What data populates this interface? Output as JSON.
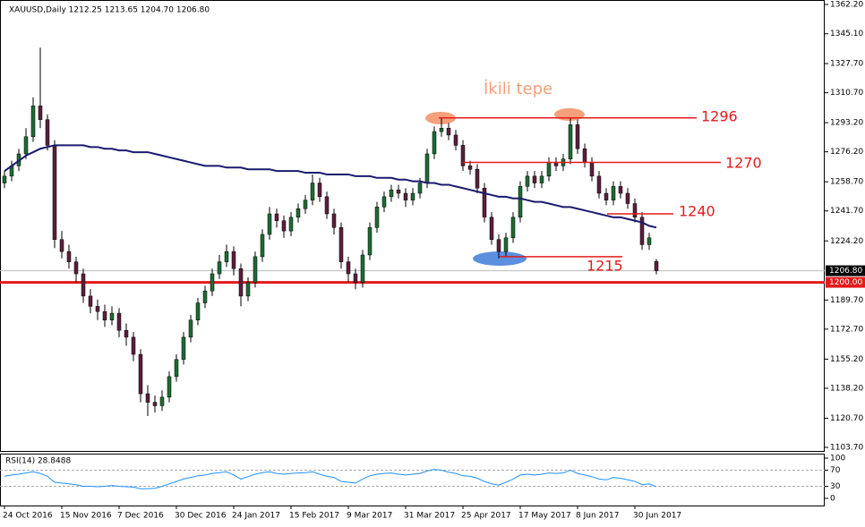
{
  "chart_data": {
    "type": "candlestick",
    "title": "XAUUSD,Daily  1212.25 1213.65 1204.70 1206.80",
    "up_color": "#1e6b34",
    "down_color": "#5a1f3c",
    "ylim": [
      1103.7,
      1362.2
    ],
    "yticks": [
      {
        "value": 1362.2,
        "label": "1362.20"
      },
      {
        "value": 1345.1,
        "label": "1345.10"
      },
      {
        "value": 1327.7,
        "label": "1327.70"
      },
      {
        "value": 1310.7,
        "label": "1310.70"
      },
      {
        "value": 1293.2,
        "label": "1293.20"
      },
      {
        "value": 1276.2,
        "label": "1276.20"
      },
      {
        "value": 1258.7,
        "label": "1258.70"
      },
      {
        "value": 1241.7,
        "label": "1241.70"
      },
      {
        "value": 1224.2,
        "label": "1224.20"
      },
      {
        "value": 1189.7,
        "label": "1189.70"
      },
      {
        "value": 1172.7,
        "label": "1172.70"
      },
      {
        "value": 1155.2,
        "label": "1155.20"
      },
      {
        "value": 1138.2,
        "label": "1138.20"
      },
      {
        "value": 1120.7,
        "label": "1120.70"
      },
      {
        "value": 1103.7,
        "label": "1103.70"
      }
    ],
    "xticks": [
      {
        "value": 0,
        "label": "24 Oct 2016"
      },
      {
        "value": 8,
        "label": "15 Nov 2016"
      },
      {
        "value": 16,
        "label": "7 Dec 2016"
      },
      {
        "value": 24,
        "label": "30 Dec 2016"
      },
      {
        "value": 32,
        "label": "24 Jan 2017"
      },
      {
        "value": 40,
        "label": "15 Feb 2017"
      },
      {
        "value": 48,
        "label": "9 Mar 2017"
      },
      {
        "value": 56,
        "label": "31 Mar 2017"
      },
      {
        "value": 64,
        "label": "25 Apr 2017"
      },
      {
        "value": 72,
        "label": "17 May 2017"
      },
      {
        "value": 80,
        "label": "8 Jun 2017"
      },
      {
        "value": 88,
        "label": "30 Jun 2017"
      }
    ],
    "candles": [
      [
        1258,
        1265,
        1255,
        1262
      ],
      [
        1262,
        1271,
        1259,
        1268
      ],
      [
        1268,
        1278,
        1265,
        1275
      ],
      [
        1275,
        1290,
        1272,
        1285
      ],
      [
        1285,
        1308,
        1282,
        1303
      ],
      [
        1303,
        1337,
        1290,
        1295
      ],
      [
        1295,
        1298,
        1277,
        1280
      ],
      [
        1280,
        1283,
        1220,
        1225
      ],
      [
        1225,
        1230,
        1214,
        1218
      ],
      [
        1218,
        1222,
        1208,
        1212
      ],
      [
        1212,
        1215,
        1200,
        1205
      ],
      [
        1205,
        1208,
        1188,
        1192
      ],
      [
        1192,
        1196,
        1182,
        1186
      ],
      [
        1186,
        1190,
        1178,
        1183
      ],
      [
        1183,
        1187,
        1174,
        1178
      ],
      [
        1178,
        1186,
        1175,
        1182
      ],
      [
        1182,
        1185,
        1168,
        1172
      ],
      [
        1172,
        1176,
        1163,
        1168
      ],
      [
        1168,
        1171,
        1154,
        1158
      ],
      [
        1158,
        1161,
        1130,
        1135
      ],
      [
        1135,
        1140,
        1122,
        1130
      ],
      [
        1130,
        1134,
        1124,
        1128
      ],
      [
        1128,
        1137,
        1125,
        1133
      ],
      [
        1133,
        1148,
        1130,
        1145
      ],
      [
        1145,
        1158,
        1142,
        1155
      ],
      [
        1155,
        1171,
        1152,
        1168
      ],
      [
        1168,
        1181,
        1165,
        1178
      ],
      [
        1178,
        1191,
        1175,
        1188
      ],
      [
        1188,
        1198,
        1185,
        1195
      ],
      [
        1195,
        1208,
        1192,
        1205
      ],
      [
        1205,
        1216,
        1202,
        1212
      ],
      [
        1212,
        1222,
        1209,
        1218
      ],
      [
        1218,
        1221,
        1204,
        1208
      ],
      [
        1208,
        1211,
        1186,
        1192
      ],
      [
        1192,
        1203,
        1189,
        1200
      ],
      [
        1200,
        1218,
        1197,
        1215
      ],
      [
        1215,
        1231,
        1212,
        1228
      ],
      [
        1228,
        1244,
        1225,
        1240
      ],
      [
        1240,
        1243,
        1232,
        1236
      ],
      [
        1236,
        1239,
        1226,
        1230
      ],
      [
        1230,
        1241,
        1227,
        1238
      ],
      [
        1238,
        1246,
        1235,
        1243
      ],
      [
        1243,
        1251,
        1240,
        1248
      ],
      [
        1248,
        1263,
        1245,
        1258
      ],
      [
        1258,
        1261,
        1247,
        1250
      ],
      [
        1250,
        1253,
        1237,
        1240
      ],
      [
        1240,
        1243,
        1228,
        1232
      ],
      [
        1232,
        1235,
        1208,
        1212
      ],
      [
        1212,
        1215,
        1200,
        1205
      ],
      [
        1205,
        1208,
        1196,
        1200
      ],
      [
        1200,
        1219,
        1197,
        1216
      ],
      [
        1216,
        1235,
        1213,
        1232
      ],
      [
        1232,
        1247,
        1229,
        1244
      ],
      [
        1244,
        1253,
        1241,
        1250
      ],
      [
        1250,
        1257,
        1247,
        1254
      ],
      [
        1254,
        1257,
        1249,
        1252
      ],
      [
        1252,
        1255,
        1244,
        1248
      ],
      [
        1248,
        1255,
        1245,
        1252
      ],
      [
        1252,
        1261,
        1249,
        1258
      ],
      [
        1258,
        1278,
        1255,
        1275
      ],
      [
        1275,
        1291,
        1272,
        1288
      ],
      [
        1288,
        1296,
        1285,
        1290
      ],
      [
        1290,
        1293,
        1283,
        1286
      ],
      [
        1286,
        1289,
        1277,
        1280
      ],
      [
        1280,
        1283,
        1265,
        1268
      ],
      [
        1268,
        1271,
        1263,
        1266
      ],
      [
        1266,
        1269,
        1252,
        1255
      ],
      [
        1255,
        1258,
        1235,
        1238
      ],
      [
        1238,
        1241,
        1222,
        1225
      ],
      [
        1225,
        1228,
        1214,
        1218
      ],
      [
        1218,
        1229,
        1215,
        1226
      ],
      [
        1226,
        1241,
        1223,
        1238
      ],
      [
        1238,
        1259,
        1235,
        1256
      ],
      [
        1256,
        1265,
        1253,
        1262
      ],
      [
        1262,
        1265,
        1255,
        1258
      ],
      [
        1258,
        1265,
        1255,
        1262
      ],
      [
        1262,
        1273,
        1259,
        1270
      ],
      [
        1270,
        1273,
        1265,
        1268
      ],
      [
        1268,
        1275,
        1265,
        1272
      ],
      [
        1272,
        1296,
        1269,
        1292
      ],
      [
        1292,
        1295,
        1275,
        1278
      ],
      [
        1278,
        1281,
        1267,
        1270
      ],
      [
        1270,
        1273,
        1259,
        1262
      ],
      [
        1262,
        1265,
        1249,
        1252
      ],
      [
        1252,
        1255,
        1245,
        1248
      ],
      [
        1248,
        1259,
        1245,
        1256
      ],
      [
        1256,
        1259,
        1249,
        1252
      ],
      [
        1252,
        1255,
        1243,
        1246
      ],
      [
        1246,
        1249,
        1235,
        1238
      ],
      [
        1238,
        1241,
        1219,
        1222
      ],
      [
        1222,
        1229,
        1219,
        1226
      ],
      [
        1212.25,
        1213.65,
        1204.7,
        1206.8
      ]
    ],
    "ma": {
      "color": "#1a1a6e",
      "values": [
        1265,
        1268,
        1271,
        1274,
        1276,
        1278,
        1279,
        1280,
        1280,
        1280,
        1280,
        1280,
        1279,
        1279,
        1278,
        1278,
        1277,
        1277,
        1276,
        1276,
        1276,
        1275,
        1274,
        1273,
        1272,
        1271,
        1270,
        1269,
        1268,
        1268,
        1268,
        1267,
        1267,
        1267,
        1266,
        1266,
        1266,
        1266,
        1265,
        1265,
        1265,
        1265,
        1264,
        1264,
        1264,
        1263,
        1263,
        1263,
        1263,
        1262,
        1262,
        1262,
        1261,
        1261,
        1261,
        1260,
        1260,
        1259,
        1259,
        1258,
        1258,
        1257,
        1257,
        1256,
        1255,
        1254,
        1253,
        1252,
        1251,
        1250,
        1250,
        1249,
        1249,
        1248,
        1247,
        1247,
        1246,
        1245,
        1244,
        1244,
        1243,
        1242,
        1241,
        1240,
        1239,
        1238,
        1238,
        1237,
        1236,
        1235,
        1233,
        1232
      ]
    },
    "price_line": {
      "value": 1206.8,
      "label": "1206.80"
    },
    "support_line": {
      "value": 1200,
      "label": "1200.00"
    },
    "levels": [
      {
        "value": 1296,
        "label": "1296"
      },
      {
        "value": 1270,
        "label": "1270"
      },
      {
        "value": 1240,
        "label": "1240"
      },
      {
        "value": 1215,
        "label": "1215"
      }
    ],
    "annotation": "İkili tepe",
    "rsi": {
      "label": "RSI(14) 28.8488",
      "color": "#1e90ff",
      "ylim": [
        0,
        100
      ],
      "yticks": [
        100,
        70,
        30,
        0
      ],
      "levels": [
        70,
        30
      ],
      "values": [
        55,
        58,
        60,
        63,
        66,
        62,
        55,
        40,
        38,
        36,
        34,
        30,
        30,
        29,
        30,
        32,
        30,
        29,
        28,
        24,
        24,
        25,
        30,
        36,
        42,
        48,
        52,
        56,
        58,
        62,
        64,
        66,
        58,
        48,
        54,
        60,
        64,
        66,
        62,
        60,
        62,
        63,
        64,
        66,
        60,
        55,
        52,
        42,
        40,
        38,
        48,
        56,
        60,
        62,
        63,
        60,
        58,
        60,
        62,
        68,
        72,
        70,
        65,
        62,
        56,
        55,
        50,
        42,
        36,
        33,
        40,
        48,
        58,
        60,
        58,
        60,
        63,
        62,
        63,
        70,
        62,
        58,
        54,
        48,
        46,
        52,
        50,
        46,
        42,
        34,
        36,
        28.8488
      ]
    }
  }
}
